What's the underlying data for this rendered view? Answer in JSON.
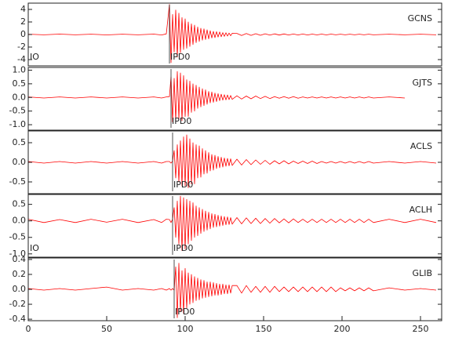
{
  "chart_data": [
    {
      "type": "line",
      "title": "GCNS",
      "color": "#ff0000",
      "xlim": [
        0,
        263.5
      ],
      "ylim": [
        -5,
        5
      ],
      "yticks": [
        -4,
        -2,
        0,
        2,
        4
      ],
      "pick": {
        "label": "IPD0",
        "x": 90
      },
      "annotations": [
        "IO"
      ],
      "x": [
        0,
        10,
        20,
        30,
        40,
        50,
        60,
        70,
        80,
        85,
        88,
        90,
        91,
        92,
        93,
        94,
        95,
        96,
        97,
        98,
        99,
        100,
        101,
        102,
        103,
        104,
        105,
        106,
        107,
        108,
        109,
        110,
        111,
        112,
        113,
        114,
        115,
        116,
        117,
        118,
        119,
        120,
        121,
        122,
        123,
        124,
        125,
        126,
        127,
        128,
        129,
        130,
        133,
        136,
        139,
        142,
        145,
        148,
        151,
        154,
        157,
        160,
        163,
        166,
        169,
        172,
        175,
        178,
        181,
        184,
        187,
        190,
        193,
        196,
        199,
        202,
        205,
        208,
        211,
        214,
        217,
        220,
        230,
        240,
        250,
        260
      ],
      "values": [
        0.05,
        -0.05,
        0.06,
        -0.05,
        0.05,
        -0.06,
        0.05,
        -0.05,
        0.06,
        -0.08,
        0.1,
        4.8,
        -4.5,
        3.2,
        -2.8,
        3.9,
        -3.6,
        3.4,
        -2.9,
        2.7,
        -2.4,
        2.5,
        -2.2,
        2.0,
        -1.9,
        1.7,
        -1.6,
        1.5,
        -1.3,
        1.2,
        -1.1,
        1.0,
        -0.9,
        0.9,
        -0.8,
        0.75,
        -0.7,
        0.6,
        -0.55,
        0.5,
        -0.5,
        0.45,
        -0.4,
        0.4,
        -0.35,
        0.3,
        -0.3,
        0.28,
        -0.25,
        0.22,
        -0.2,
        0.2,
        0.18,
        -0.16,
        0.15,
        -0.14,
        0.13,
        -0.12,
        0.11,
        -0.1,
        0.1,
        -0.09,
        0.09,
        -0.08,
        0.08,
        -0.07,
        0.07,
        -0.07,
        0.06,
        -0.06,
        0.06,
        -0.06,
        0.06,
        -0.05,
        0.05,
        -0.05,
        0.05,
        -0.05,
        0.05,
        -0.05,
        0.05,
        -0.05,
        0.05,
        -0.05,
        0.05,
        -0.05
      ]
    },
    {
      "type": "line",
      "title": "GJTS",
      "color": "#ff0000",
      "xlim": [
        0,
        263.5
      ],
      "ylim": [
        -1.2,
        1.1
      ],
      "yticks": [
        {
          "value": -1,
          "label": "-1.0"
        },
        {
          "value": -0.5,
          "label": "-0.5"
        },
        {
          "value": 0,
          "label": "0.0"
        },
        {
          "value": 0.5,
          "label": "0.5"
        },
        {
          "value": 1,
          "label": "1.0"
        }
      ],
      "pick": {
        "label": "IPD0",
        "x": 91
      },
      "x": [
        0,
        10,
        20,
        30,
        40,
        50,
        60,
        70,
        80,
        85,
        88,
        90,
        91,
        92,
        93,
        94,
        95,
        96,
        97,
        98,
        99,
        100,
        101,
        102,
        103,
        104,
        105,
        106,
        107,
        108,
        109,
        110,
        111,
        112,
        113,
        114,
        115,
        116,
        117,
        118,
        119,
        120,
        121,
        122,
        123,
        124,
        125,
        126,
        127,
        128,
        129,
        130,
        133,
        136,
        139,
        142,
        145,
        148,
        151,
        154,
        157,
        160,
        163,
        166,
        169,
        172,
        175,
        178,
        181,
        184,
        187,
        190,
        193,
        196,
        199,
        202,
        205,
        208,
        211,
        214,
        217,
        220,
        230,
        240,
        250,
        260
      ],
      "values": [
        0.02,
        -0.02,
        0.02,
        -0.02,
        0.02,
        -0.02,
        0.02,
        -0.02,
        0.02,
        -0.02,
        0.02,
        0.03,
        0.75,
        -0.9,
        0.7,
        -0.85,
        0.95,
        -0.8,
        0.9,
        -0.85,
        0.8,
        -0.7,
        0.65,
        -0.7,
        0.6,
        -0.55,
        0.5,
        -0.5,
        0.45,
        -0.4,
        0.38,
        -0.35,
        0.32,
        -0.3,
        0.28,
        -0.25,
        0.22,
        -0.2,
        0.2,
        -0.18,
        0.16,
        -0.15,
        0.14,
        -0.12,
        0.12,
        -0.1,
        0.1,
        -0.09,
        0.09,
        -0.08,
        0.07,
        -0.07,
        0.06,
        -0.06,
        0.05,
        -0.05,
        0.05,
        -0.04,
        0.04,
        -0.04,
        0.03,
        -0.03,
        0.03,
        -0.03,
        0.03,
        -0.03,
        0.02,
        -0.02,
        0.02,
        -0.02,
        0.02,
        -0.02,
        0.02,
        -0.02,
        0.02,
        -0.02,
        0.02,
        -0.02,
        0.02,
        -0.02,
        0.02,
        -0.02,
        0.02,
        -0.02,
        null,
        null
      ]
    },
    {
      "type": "line",
      "title": "ACLS",
      "color": "#ff0000",
      "xlim": [
        0,
        263.5
      ],
      "ylim": [
        -0.8,
        0.8
      ],
      "yticks": [
        {
          "value": -0.5,
          "label": "-0.5"
        },
        {
          "value": 0,
          "label": "0.0"
        },
        {
          "value": 0.5,
          "label": "0.5"
        }
      ],
      "pick": {
        "label": "IPD0",
        "x": 92
      },
      "x": [
        0,
        10,
        20,
        30,
        40,
        50,
        60,
        70,
        80,
        85,
        88,
        90,
        91,
        92,
        93,
        94,
        95,
        96,
        97,
        98,
        99,
        100,
        101,
        102,
        103,
        104,
        105,
        106,
        107,
        108,
        109,
        110,
        111,
        112,
        113,
        114,
        115,
        116,
        117,
        118,
        119,
        120,
        121,
        122,
        123,
        124,
        125,
        126,
        127,
        128,
        129,
        130,
        133,
        136,
        139,
        142,
        145,
        148,
        151,
        154,
        157,
        160,
        163,
        166,
        169,
        172,
        175,
        178,
        181,
        184,
        187,
        190,
        193,
        196,
        199,
        202,
        205,
        208,
        211,
        214,
        217,
        220,
        230,
        240,
        250,
        260
      ],
      "values": [
        0.02,
        -0.02,
        0.02,
        -0.02,
        0.02,
        -0.02,
        0.02,
        -0.02,
        0.02,
        -0.02,
        0.02,
        0.02,
        -0.02,
        0.03,
        0.3,
        -0.4,
        0.45,
        -0.5,
        0.55,
        -0.6,
        0.65,
        -0.6,
        0.7,
        -0.65,
        0.6,
        -0.55,
        0.5,
        -0.55,
        0.45,
        -0.4,
        0.42,
        -0.38,
        0.35,
        -0.3,
        0.3,
        -0.28,
        0.25,
        -0.22,
        0.2,
        -0.2,
        0.18,
        -0.16,
        0.15,
        -0.14,
        0.13,
        -0.12,
        0.11,
        -0.1,
        0.1,
        -0.09,
        0.09,
        -0.08,
        0.08,
        -0.07,
        0.07,
        -0.06,
        0.06,
        -0.05,
        0.05,
        -0.05,
        0.04,
        -0.04,
        0.04,
        -0.04,
        0.03,
        -0.03,
        0.03,
        -0.03,
        0.03,
        -0.03,
        0.02,
        -0.02,
        0.02,
        -0.02,
        0.02,
        -0.02,
        0.02,
        -0.02,
        0.02,
        -0.02,
        0.02,
        -0.02,
        0.02,
        -0.02,
        0.02,
        -0.02
      ]
    },
    {
      "type": "line",
      "title": "ACLH",
      "color": "#ff0000",
      "xlim": [
        0,
        263.5
      ],
      "ylim": [
        -1.1,
        0.8
      ],
      "yticks": [
        {
          "value": -1,
          "label": "-1.0"
        },
        {
          "value": -0.5,
          "label": "-0.5"
        },
        {
          "value": 0,
          "label": "0.0"
        },
        {
          "value": 0.5,
          "label": "0.5"
        }
      ],
      "pick": {
        "label": "IPD0",
        "x": 92
      },
      "annotations": [
        "IO"
      ],
      "x": [
        0,
        10,
        20,
        30,
        40,
        50,
        60,
        70,
        80,
        85,
        88,
        90,
        91,
        92,
        93,
        94,
        95,
        96,
        97,
        98,
        99,
        100,
        101,
        102,
        103,
        104,
        105,
        106,
        107,
        108,
        109,
        110,
        111,
        112,
        113,
        114,
        115,
        116,
        117,
        118,
        119,
        120,
        121,
        122,
        123,
        124,
        125,
        126,
        127,
        128,
        129,
        130,
        133,
        136,
        139,
        142,
        145,
        148,
        151,
        154,
        157,
        160,
        163,
        166,
        169,
        172,
        175,
        178,
        181,
        184,
        187,
        190,
        193,
        196,
        199,
        202,
        205,
        208,
        211,
        214,
        217,
        220,
        230,
        240,
        250,
        260
      ],
      "values": [
        0.05,
        -0.05,
        0.04,
        -0.05,
        0.05,
        -0.04,
        0.05,
        -0.05,
        0.04,
        -0.05,
        0.05,
        0.04,
        -0.05,
        0.05,
        0.4,
        -0.5,
        0.6,
        -0.7,
        0.75,
        -0.9,
        0.7,
        -0.85,
        0.65,
        -0.7,
        0.6,
        -0.6,
        0.55,
        -0.5,
        0.45,
        -0.45,
        0.4,
        -0.38,
        0.35,
        -0.32,
        0.3,
        -0.28,
        0.26,
        -0.24,
        0.22,
        -0.2,
        0.2,
        -0.18,
        0.17,
        -0.16,
        0.15,
        -0.14,
        0.13,
        -0.12,
        0.12,
        -0.11,
        0.1,
        -0.1,
        0.1,
        -0.09,
        0.09,
        -0.08,
        0.08,
        -0.08,
        0.07,
        -0.07,
        0.07,
        -0.06,
        0.06,
        -0.06,
        0.06,
        -0.05,
        0.05,
        -0.05,
        0.05,
        -0.05,
        0.05,
        -0.05,
        0.05,
        -0.05,
        0.05,
        -0.05,
        0.05,
        -0.05,
        0.05,
        -0.05,
        0.05,
        -0.05,
        0.05,
        -0.05,
        0.05,
        -0.05
      ]
    },
    {
      "type": "line",
      "title": "GLIB",
      "color": "#ff0000",
      "xlim": [
        0,
        263.5
      ],
      "ylim": [
        -0.42,
        0.42
      ],
      "yticks": [
        {
          "value": -0.4,
          "label": "-0.4"
        },
        {
          "value": -0.2,
          "label": "-0.2"
        },
        {
          "value": 0,
          "label": "0.0"
        },
        {
          "value": 0.2,
          "label": "0.2"
        },
        {
          "value": 0.4,
          "label": "0.4"
        }
      ],
      "xticks": [
        0,
        50,
        100,
        150,
        200,
        250
      ],
      "pick": {
        "label": "IPD0",
        "x": 93
      },
      "x": [
        0,
        10,
        20,
        30,
        40,
        50,
        60,
        70,
        80,
        85,
        88,
        90,
        91,
        92,
        93,
        94,
        95,
        96,
        97,
        98,
        99,
        100,
        101,
        102,
        103,
        104,
        105,
        106,
        107,
        108,
        109,
        110,
        111,
        112,
        113,
        114,
        115,
        116,
        117,
        118,
        119,
        120,
        121,
        122,
        123,
        124,
        125,
        126,
        127,
        128,
        129,
        130,
        133,
        136,
        139,
        142,
        145,
        148,
        151,
        154,
        157,
        160,
        163,
        166,
        169,
        172,
        175,
        178,
        181,
        184,
        187,
        190,
        193,
        196,
        199,
        202,
        205,
        208,
        211,
        214,
        217,
        220,
        230,
        240,
        250,
        260
      ],
      "values": [
        0.01,
        -0.01,
        0.01,
        -0.01,
        0.01,
        0.03,
        -0.01,
        0.01,
        -0.01,
        0.01,
        -0.01,
        0.01,
        -0.01,
        0.01,
        -0.01,
        0.3,
        -0.38,
        0.35,
        -0.3,
        0.25,
        -0.32,
        0.28,
        -0.25,
        0.22,
        -0.2,
        0.2,
        -0.18,
        0.17,
        -0.15,
        0.15,
        -0.14,
        0.13,
        -0.12,
        0.12,
        -0.11,
        0.1,
        -0.1,
        0.1,
        -0.09,
        0.09,
        -0.08,
        0.08,
        -0.08,
        0.07,
        -0.07,
        0.07,
        -0.06,
        0.06,
        -0.06,
        0.06,
        -0.05,
        0.05,
        0.05,
        -0.05,
        0.05,
        -0.04,
        0.04,
        -0.04,
        0.04,
        -0.04,
        0.04,
        -0.03,
        0.03,
        -0.03,
        0.03,
        -0.03,
        0.03,
        -0.03,
        0.03,
        -0.03,
        0.03,
        -0.03,
        0.03,
        -0.03,
        0.02,
        -0.02,
        0.02,
        -0.02,
        0.02,
        -0.02,
        0.02,
        -0.02,
        0.02,
        -0.01,
        0.01,
        -0.01
      ]
    }
  ]
}
